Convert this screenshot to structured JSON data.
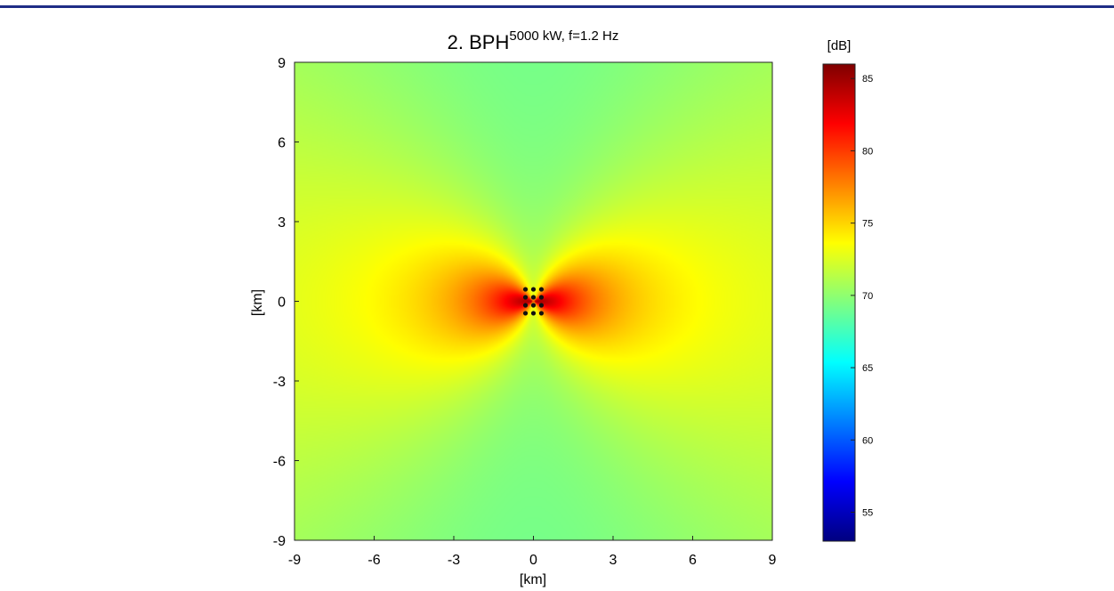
{
  "chart_data": {
    "type": "heatmap",
    "title": {
      "main": "2. BPH",
      "superscript": "5000 kW, f=1.2 Hz"
    },
    "xlabel": "[km]",
    "ylabel": "[km]",
    "xlim": [
      -9,
      9
    ],
    "ylim": [
      -9,
      9
    ],
    "x_ticks": [
      "-9",
      "-6",
      "-3",
      "0",
      "3",
      "6",
      "9"
    ],
    "y_ticks": [
      "9",
      "6",
      "3",
      "0",
      "-3",
      "-6",
      "-9"
    ],
    "colorbar": {
      "label": "[dB]",
      "range": [
        53,
        86
      ],
      "ticks": [
        "85",
        "80",
        "75",
        "70",
        "65",
        "60",
        "55"
      ],
      "colormap": "jet"
    },
    "field": {
      "description_values": "dipole pattern: max near origin (~85 dB), lobes along x-axis, minimum along y-axis",
      "peak_db": 85,
      "axis_min_db": 69,
      "background_db": 71.5
    },
    "source_markers": {
      "color": "#111111",
      "points": [
        [
          -0.3,
          0.45
        ],
        [
          0.0,
          0.45
        ],
        [
          0.3,
          0.45
        ],
        [
          -0.3,
          0.15
        ],
        [
          0.0,
          0.15
        ],
        [
          0.3,
          0.15
        ],
        [
          -0.3,
          -0.15
        ],
        [
          0.0,
          -0.15
        ],
        [
          0.3,
          -0.15
        ],
        [
          -0.3,
          -0.45
        ],
        [
          0.0,
          -0.45
        ],
        [
          0.3,
          -0.45
        ]
      ]
    }
  }
}
